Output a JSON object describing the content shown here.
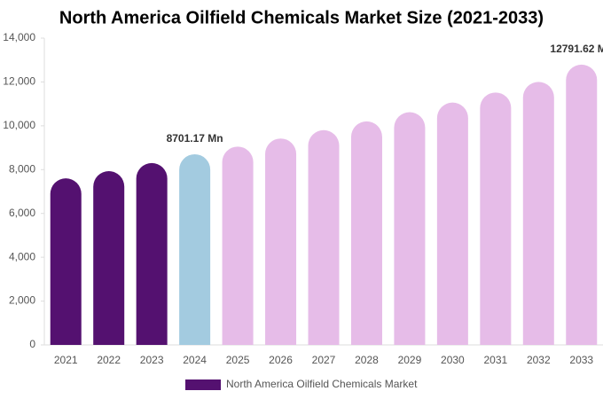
{
  "chart_data": {
    "type": "bar",
    "title": "North America Oilfield Chemicals Market Size (2021-2033)",
    "categories": [
      "2021",
      "2022",
      "2023",
      "2024",
      "2025",
      "2026",
      "2027",
      "2028",
      "2029",
      "2030",
      "2031",
      "2032",
      "2033"
    ],
    "series": [
      {
        "name": "North America Oilfield Chemicals Market",
        "color": "#541170",
        "values": [
          7600,
          7930,
          8300,
          8701.17,
          9050,
          9420,
          9800,
          10200,
          10620,
          11060,
          11520,
          12000,
          12791.62
        ],
        "value_labels": [
          null,
          null,
          null,
          "8701.17 Mn",
          null,
          null,
          null,
          null,
          null,
          null,
          null,
          null,
          "12791.62 Mn"
        ],
        "colors": [
          "#541170",
          "#541170",
          "#541170",
          "#a3cbe0",
          "#e6bce8",
          "#e6bce8",
          "#e6bce8",
          "#e6bce8",
          "#e6bce8",
          "#e6bce8",
          "#e6bce8",
          "#e6bce8",
          "#e6bce8"
        ]
      }
    ],
    "ylim": [
      0,
      14000
    ],
    "yticks": [
      0,
      {
        "value": 2000,
        "label": "2,000"
      },
      {
        "value": 4000,
        "label": "4,000"
      },
      {
        "value": 6000,
        "label": "6,000"
      },
      {
        "value": 8000,
        "label": "8,000"
      },
      {
        "value": 10000,
        "label": "10,000"
      },
      {
        "value": 12000,
        "label": "12,000"
      },
      {
        "value": 14000,
        "label": "14,000"
      }
    ],
    "grid": false
  }
}
